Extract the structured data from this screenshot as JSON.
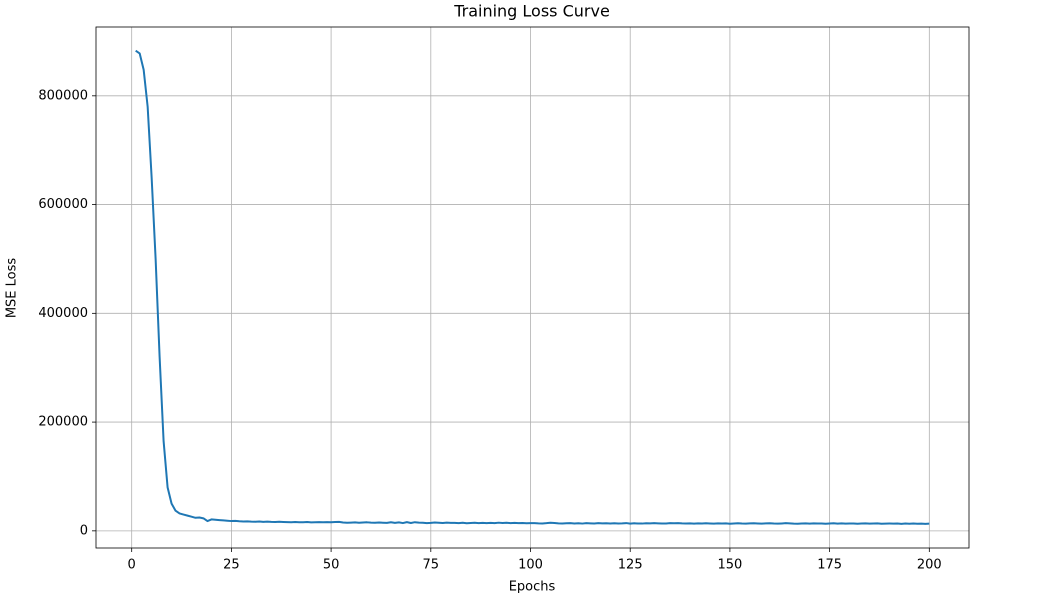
{
  "chart_data": {
    "type": "line",
    "title": "Training Loss Curve",
    "xlabel": "Epochs",
    "ylabel": "MSE Loss",
    "x": [
      1,
      2,
      3,
      4,
      5,
      6,
      7,
      8,
      9,
      10,
      11,
      12,
      13,
      14,
      15,
      16,
      17,
      18,
      19,
      20,
      21,
      22,
      23,
      24,
      25,
      26,
      27,
      28,
      29,
      30,
      31,
      32,
      33,
      34,
      35,
      36,
      37,
      38,
      39,
      40,
      41,
      42,
      43,
      44,
      45,
      46,
      47,
      48,
      49,
      50,
      51,
      52,
      53,
      54,
      55,
      56,
      57,
      58,
      59,
      60,
      61,
      62,
      63,
      64,
      65,
      66,
      67,
      68,
      69,
      70,
      71,
      72,
      73,
      74,
      75,
      76,
      77,
      78,
      79,
      80,
      81,
      82,
      83,
      84,
      85,
      86,
      87,
      88,
      89,
      90,
      91,
      92,
      93,
      94,
      95,
      96,
      97,
      98,
      99,
      100,
      101,
      102,
      103,
      104,
      105,
      106,
      107,
      108,
      109,
      110,
      111,
      112,
      113,
      114,
      115,
      116,
      117,
      118,
      119,
      120,
      121,
      122,
      123,
      124,
      125,
      126,
      127,
      128,
      129,
      130,
      131,
      132,
      133,
      134,
      135,
      136,
      137,
      138,
      139,
      140,
      141,
      142,
      143,
      144,
      145,
      146,
      147,
      148,
      149,
      150,
      151,
      152,
      153,
      154,
      155,
      156,
      157,
      158,
      159,
      160,
      161,
      162,
      163,
      164,
      165,
      166,
      167,
      168,
      169,
      170,
      171,
      172,
      173,
      174,
      175,
      176,
      177,
      178,
      179,
      180,
      181,
      182,
      183,
      184,
      185,
      186,
      187,
      188,
      189,
      190,
      191,
      192,
      193,
      194,
      195,
      196,
      197,
      198,
      199,
      200
    ],
    "values": [
      883000,
      878000,
      848000,
      780000,
      650000,
      500000,
      320000,
      165000,
      80000,
      50000,
      37000,
      32000,
      30000,
      28000,
      26000,
      24000,
      24500,
      23000,
      18000,
      21000,
      20500,
      19800,
      19200,
      18600,
      18000,
      18300,
      17600,
      17200,
      17500,
      17000,
      16800,
      17100,
      16600,
      17000,
      16500,
      16200,
      16700,
      16300,
      16000,
      15800,
      16200,
      15700,
      15900,
      16300,
      15600,
      15900,
      16100,
      15700,
      16000,
      15800,
      16200,
      16500,
      15400,
      14900,
      15200,
      15600,
      14800,
      15300,
      15700,
      15100,
      14800,
      15400,
      15000,
      14600,
      15800,
      14700,
      15500,
      14300,
      16000,
      14500,
      15900,
      15200,
      14800,
      14100,
      14600,
      15300,
      14900,
      14400,
      15100,
      14700,
      14600,
      14200,
      14900,
      14000,
      14500,
      14800,
      14300,
      14700,
      14100,
      14600,
      14200,
      15000,
      14400,
      14800,
      14300,
      14600,
      14100,
      14500,
      14000,
      14200,
      14300,
      13800,
      13600,
      14100,
      14900,
      14400,
      13700,
      13500,
      13900,
      14200,
      13600,
      14000,
      13400,
      14100,
      13800,
      13500,
      14200,
      13700,
      13900,
      13600,
      14000,
      13500,
      13800,
      14300,
      13200,
      13900,
      13600,
      13400,
      14000,
      13700,
      14200,
      13800,
      13500,
      13600,
      14100,
      13900,
      14300,
      13700,
      13400,
      13800,
      13200,
      13700,
      13500,
      13900,
      13600,
      13300,
      13800,
      13400,
      13700,
      13100,
      13500,
      13900,
      13400,
      13200,
      13800,
      14000,
      13600,
      13300,
      13700,
      13900,
      13400,
      13200,
      13600,
      14100,
      13800,
      13300,
      13000,
      13500,
      13700,
      13200,
      13800,
      13400,
      13600,
      13100,
      13500,
      13900,
      13300,
      13700,
      13200,
      13400,
      13600,
      13000,
      13400,
      13800,
      13200,
      13500,
      13700,
      13100,
      13300,
      13600,
      13200,
      13500,
      12900,
      13400,
      13000,
      13600,
      13100,
      13300,
      12800,
      13200
    ],
    "color": "#1f77b4",
    "xlim": [
      -8.95,
      209.95
    ],
    "xticks": [
      0,
      25,
      50,
      75,
      100,
      125,
      150,
      175,
      200
    ],
    "ylim": [
      -31550,
      926550
    ],
    "yticks": [
      0,
      200000,
      400000,
      600000,
      800000
    ],
    "grid": true
  }
}
